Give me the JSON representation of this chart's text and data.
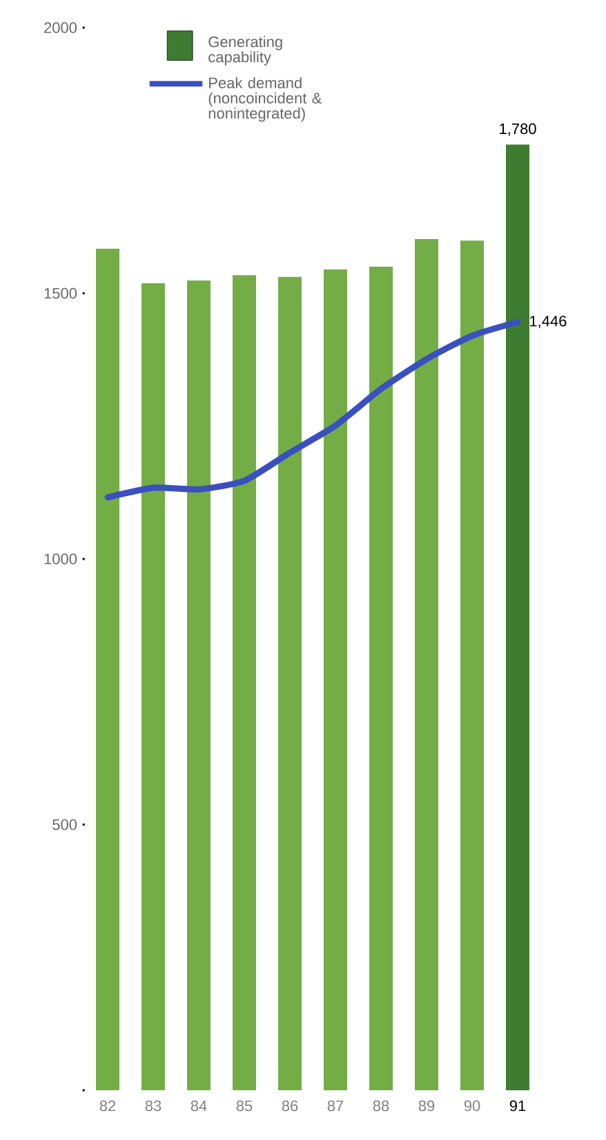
{
  "chart_data": {
    "type": "bar",
    "categories": [
      "82",
      "83",
      "84",
      "85",
      "86",
      "87",
      "88",
      "89",
      "90",
      "91"
    ],
    "series": [
      {
        "name": "Generating capability",
        "color": "#3e7d31",
        "colors": [
          "#74ad45",
          "#74ad45",
          "#74ad45",
          "#74ad45",
          "#74ad45",
          "#74ad45",
          "#74ad45",
          "#74ad45",
          "#74ad45",
          "#3e7d31"
        ],
        "values": [
          1584,
          1519,
          1524,
          1534,
          1531,
          1545,
          1550,
          1602,
          1599,
          1780
        ],
        "value_labels": [
          null,
          null,
          null,
          null,
          null,
          null,
          null,
          null,
          null,
          "1,780"
        ]
      },
      {
        "name": "Peak demand (noncoincident & nonintegrated)",
        "type": "line",
        "color": "#3a4fc0",
        "values": [
          1116,
          1134,
          1131,
          1147,
          1200,
          1251,
          1320,
          1376,
          1420,
          1446
        ],
        "value_labels": [
          null,
          null,
          null,
          null,
          null,
          null,
          null,
          null,
          null,
          "1,446"
        ]
      }
    ],
    "ylim": [
      0,
      2000
    ],
    "yticks": [
      {
        "value": 0,
        "label": null
      },
      500,
      1000,
      1500,
      2000
    ],
    "legend": "top left",
    "grid": false
  }
}
